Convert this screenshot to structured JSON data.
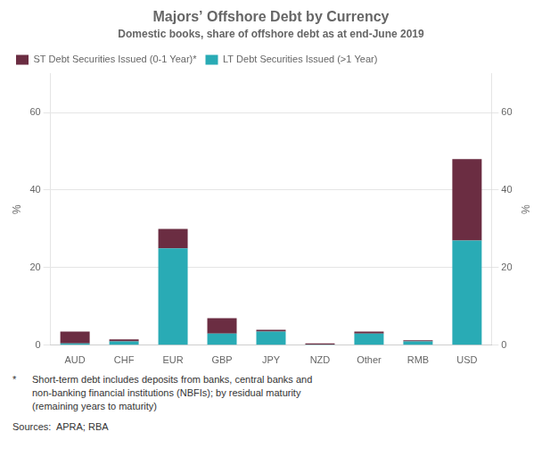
{
  "chart_data": {
    "type": "bar",
    "stacked": true,
    "title": "Majors’ Offshore Debt by Currency",
    "subtitle": "Domestic books, share of offshore debt as at end-June 2019",
    "categories": [
      "AUD",
      "CHF",
      "EUR",
      "GBP",
      "JPY",
      "NZD",
      "Other",
      "RMB",
      "USD"
    ],
    "series": [
      {
        "name": "LT Debt Securities Issued (>1 Year)",
        "color": "#29ABB5",
        "values": [
          0.5,
          1.0,
          25.0,
          3.0,
          3.5,
          0.2,
          3.0,
          1.0,
          27.0
        ]
      },
      {
        "name": "ST Debt Securities Issued (0-1 Year)*",
        "color": "#6B2D42",
        "values": [
          3.0,
          0.5,
          5.0,
          4.0,
          0.5,
          0.3,
          0.5,
          0.3,
          21.0
        ]
      }
    ],
    "ylim": [
      0,
      70
    ],
    "yticks": [
      0,
      20,
      40,
      60
    ],
    "ylabel": "%",
    "y2lim": [
      0,
      70
    ],
    "y2ticks": [
      0,
      20,
      40,
      60
    ],
    "y2label": "%",
    "grid": true,
    "legend": "upper left",
    "footnote": "*",
    "footnote_text": [
      "Short-term debt includes deposits from banks, central banks and",
      "non-banking financial institutions (NBFIs); by residual maturity",
      "(remaining years to maturity)"
    ],
    "sources": "Sources:  APRA; RBA"
  }
}
